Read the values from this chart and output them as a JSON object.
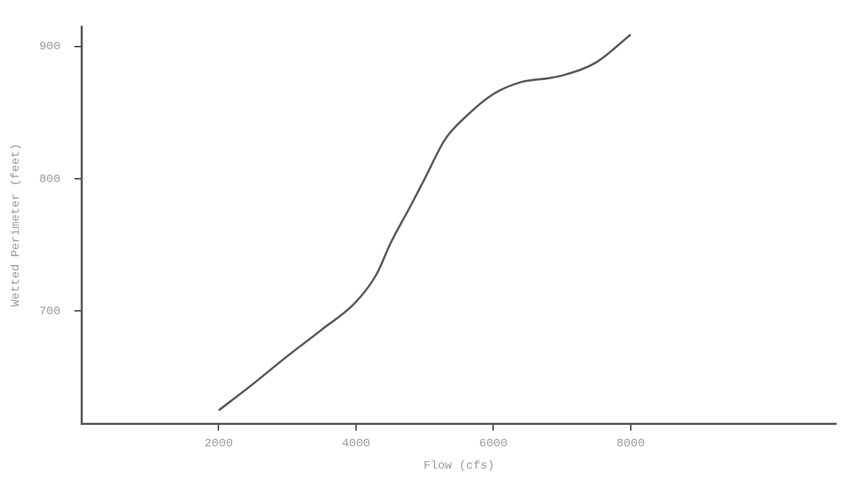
{
  "chart_data": {
    "type": "line",
    "xlabel": "Flow (cfs)",
    "ylabel": "Wetted Perimeter (feet)",
    "x": [
      2000,
      2500,
      3000,
      3500,
      4000,
      4300,
      4500,
      4800,
      5000,
      5300,
      5600,
      6000,
      6400,
      6800,
      7000,
      7500,
      8000
    ],
    "series": [
      {
        "color": "#555555",
        "values": [
          625,
          645,
          666,
          686,
          707,
          728,
          751,
          780,
          800,
          830,
          847,
          864,
          873,
          876,
          878,
          888,
          909
        ]
      }
    ],
    "xlim": [
      0,
      11000
    ],
    "ylim": [
      615,
      915
    ],
    "xticks": [
      2000,
      4000,
      6000,
      8000
    ],
    "yticks": [
      700,
      800,
      900
    ],
    "grid": false,
    "legend": false,
    "marker": "none",
    "line_style": "solid"
  }
}
